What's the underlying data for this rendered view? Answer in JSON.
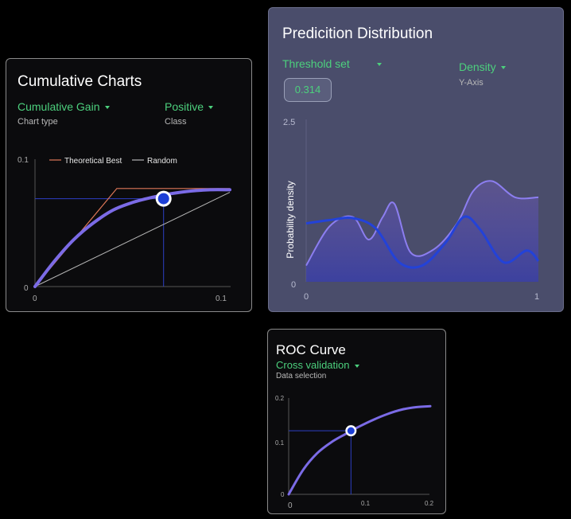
{
  "colors": {
    "accent_green": "#4cd07d",
    "curve_purple": "#7b6be6",
    "marker_blue": "#1d3fd6",
    "theoretical": "#e07858",
    "random": "#b5b5b5",
    "pred_fill": "#5a4f8e",
    "density_blue": "#2342d8"
  },
  "cumulative": {
    "title": "Cumulative Charts",
    "chart_type_value": "Cumulative Gain",
    "chart_type_label": "Chart type",
    "class_value": "Positive",
    "class_label": "Class",
    "legend": {
      "theoretical": "Theoretical Best",
      "random": "Random"
    },
    "y_ticks": [
      "0.1",
      "0"
    ],
    "x_ticks": [
      "0",
      "0.1"
    ]
  },
  "prediction": {
    "title": "Predicition Distribution",
    "threshold_label": "Threshold set",
    "threshold_value": "0.314",
    "density_value": "Density",
    "density_label": "Y-Axis",
    "y_axis_title": "Probability density",
    "y_ticks": [
      "2.5",
      "0"
    ],
    "x_ticks": [
      "0",
      "1"
    ]
  },
  "roc": {
    "title": "ROC Curve",
    "selection_value": "Cross validation",
    "selection_label": "Data selection",
    "y_ticks": [
      "0.2",
      "0.1",
      "0"
    ],
    "x_ticks": [
      "0",
      "0.1",
      "0.2"
    ]
  },
  "chart_data": [
    {
      "type": "line",
      "title": "Cumulative Charts",
      "xlim": [
        0,
        0.1
      ],
      "ylim": [
        0,
        0.1
      ],
      "grid": false,
      "legend_position": "top",
      "series": [
        {
          "name": "Theoretical Best",
          "x": [
            0,
            0.042,
            0.1
          ],
          "y": [
            0,
            0.077,
            0.077
          ]
        },
        {
          "name": "Random",
          "x": [
            0,
            0.1
          ],
          "y": [
            0,
            0.074
          ]
        },
        {
          "x": [
            0,
            0.01,
            0.02,
            0.03,
            0.04,
            0.05,
            0.06,
            0.07,
            0.08,
            0.09,
            0.1
          ],
          "y": [
            0,
            0.02,
            0.037,
            0.05,
            0.06,
            0.066,
            0.07,
            0.073,
            0.075,
            0.076,
            0.076
          ]
        }
      ],
      "marker": {
        "x": 0.066,
        "y": 0.069
      }
    },
    {
      "type": "area",
      "title": "Predicition Distribution",
      "ylabel": "Probability density",
      "xlim": [
        0,
        1
      ],
      "ylim": [
        0,
        2.5
      ],
      "threshold": 0.314,
      "series": [
        {
          "x": [
            0,
            0.1,
            0.2,
            0.27,
            0.33,
            0.38,
            0.45,
            0.55,
            0.65,
            0.72,
            0.8,
            0.9,
            1.0
          ],
          "y": [
            0.25,
            0.85,
            1.0,
            0.65,
            1.0,
            1.2,
            0.45,
            0.5,
            0.9,
            1.4,
            1.55,
            1.3,
            1.3
          ]
        },
        {
          "x": [
            0,
            0.1,
            0.2,
            0.3,
            0.4,
            0.5,
            0.6,
            0.68,
            0.75,
            0.85,
            0.95,
            1.0
          ],
          "y": [
            0.9,
            0.95,
            0.98,
            0.82,
            0.3,
            0.25,
            0.6,
            1.0,
            0.8,
            0.3,
            0.48,
            0.32
          ]
        }
      ]
    },
    {
      "type": "line",
      "title": "ROC Curve",
      "xlim": [
        0,
        0.2
      ],
      "ylim": [
        0,
        0.2
      ],
      "grid": false,
      "series": [
        {
          "x": [
            0,
            0.02,
            0.04,
            0.06,
            0.08,
            0.1,
            0.12,
            0.14,
            0.16,
            0.18,
            0.2
          ],
          "y": [
            0,
            0.05,
            0.085,
            0.108,
            0.125,
            0.141,
            0.155,
            0.167,
            0.176,
            0.181,
            0.183
          ]
        }
      ],
      "marker": {
        "x": 0.088,
        "y": 0.132
      }
    }
  ]
}
